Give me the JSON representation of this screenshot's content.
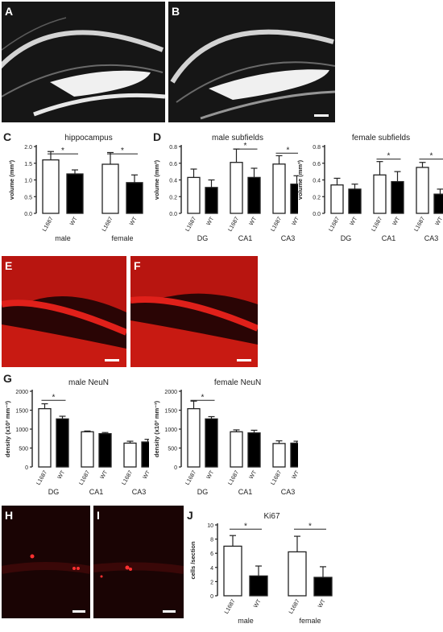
{
  "panel_labels": {
    "A": "A",
    "B": "B",
    "C": "C",
    "D": "D",
    "E": "E",
    "F": "F",
    "G": "G",
    "H": "H",
    "I": "I",
    "J": "J"
  },
  "colors": {
    "wt": "#000000",
    "l1687": "#ffffff",
    "axis": "#222222",
    "nissl_bg": "#161616",
    "nissl_fg": "#e8e8e8",
    "neun_bg": "#2a0505",
    "neun_fg": "#e0201a",
    "ki67_bg": "#1a0404",
    "ki67_spot": "#ff3030"
  },
  "chart_data": [
    {
      "id": "C",
      "type": "bar",
      "title": "hippocampus",
      "ylabel": "volume (mm³)",
      "ylim": [
        0,
        2.0
      ],
      "yticks": [
        "0.0",
        "0.5",
        "1.0",
        "1.5",
        "2.0"
      ],
      "ytick_values": [
        0,
        0.5,
        1.0,
        1.5,
        2.0
      ],
      "groups": [
        "male",
        "female"
      ],
      "bar_labels": [
        "L1687",
        "WT",
        "L1687",
        "WT"
      ],
      "values": [
        1.6,
        1.18,
        1.47,
        0.92
      ],
      "errors": [
        0.25,
        0.12,
        0.35,
        0.23
      ],
      "significance": [
        {
          "text": "*",
          "pair": [
            0,
            1
          ],
          "y": 1.78
        },
        {
          "text": "*",
          "pair": [
            2,
            3
          ],
          "y": 1.78
        }
      ]
    },
    {
      "id": "D1",
      "type": "bar",
      "title": "male subfields",
      "ylabel": "volume (mm³)",
      "ylim": [
        0,
        0.8
      ],
      "yticks": [
        "0.0",
        "0.2",
        "0.4",
        "0.6",
        "0.8"
      ],
      "ytick_values": [
        0,
        0.2,
        0.4,
        0.6,
        0.8
      ],
      "groups": [
        "DG",
        "CA1",
        "CA3"
      ],
      "bar_labels": [
        "L1687",
        "WT",
        "L1687",
        "WT",
        "L1687",
        "WT"
      ],
      "values": [
        0.43,
        0.31,
        0.61,
        0.43,
        0.59,
        0.35
      ],
      "errors": [
        0.1,
        0.09,
        0.16,
        0.11,
        0.1,
        0.1
      ],
      "significance": [
        {
          "text": "*",
          "pair": [
            2,
            3
          ],
          "y": 0.77
        },
        {
          "text": "*",
          "pair": [
            4,
            5
          ],
          "y": 0.72
        }
      ]
    },
    {
      "id": "D2",
      "type": "bar",
      "title": "female subfields",
      "ylabel": "volume (mm³)",
      "ylim": [
        0,
        0.8
      ],
      "yticks": [
        "0.0",
        "0.2",
        "0.4",
        "0.6",
        "0.8"
      ],
      "ytick_values": [
        0,
        0.2,
        0.4,
        0.6,
        0.8
      ],
      "groups": [
        "DG",
        "CA1",
        "CA3"
      ],
      "bar_labels": [
        "L1687",
        "WT",
        "L1687",
        "WT",
        "L1687",
        "WT"
      ],
      "values": [
        0.34,
        0.29,
        0.46,
        0.38,
        0.55,
        0.23
      ],
      "errors": [
        0.08,
        0.06,
        0.16,
        0.12,
        0.06,
        0.06
      ],
      "significance": [
        {
          "text": "*",
          "pair": [
            2,
            3
          ],
          "y": 0.65
        },
        {
          "text": "*",
          "pair": [
            4,
            5
          ],
          "y": 0.65
        }
      ]
    },
    {
      "id": "G1",
      "type": "bar",
      "title": "male NeuN",
      "ylabel": "density (x10³ mm⁻³)",
      "ylim": [
        0,
        2000
      ],
      "yticks": [
        "0",
        "500",
        "1000",
        "1500",
        "2000"
      ],
      "ytick_values": [
        0,
        500,
        1000,
        1500,
        2000
      ],
      "groups": [
        "DG",
        "CA1",
        "CA3"
      ],
      "bar_labels": [
        "L1687",
        "WT",
        "L1687",
        "WT",
        "L1687",
        "WT"
      ],
      "values": [
        1540,
        1270,
        930,
        880,
        630,
        660
      ],
      "errors": [
        130,
        70,
        20,
        30,
        50,
        70
      ],
      "significance": [
        {
          "text": "*",
          "pair": [
            0,
            1
          ],
          "y": 1760
        }
      ]
    },
    {
      "id": "G2",
      "type": "bar",
      "title": "female NeuN",
      "ylabel": "density (x10³ mm⁻³)",
      "ylim": [
        0,
        2000
      ],
      "yticks": [
        "0",
        "500",
        "1000",
        "1500",
        "2000"
      ],
      "ytick_values": [
        0,
        500,
        1000,
        1500,
        2000
      ],
      "groups": [
        "DG",
        "CA1",
        "CA3"
      ],
      "bar_labels": [
        "L1687",
        "WT",
        "L1687",
        "WT",
        "L1687",
        "WT"
      ],
      "values": [
        1540,
        1270,
        930,
        900,
        620,
        630
      ],
      "errors": [
        200,
        60,
        50,
        70,
        70,
        50
      ],
      "significance": [
        {
          "text": "*",
          "pair": [
            0,
            1
          ],
          "y": 1760
        }
      ]
    },
    {
      "id": "J",
      "type": "bar",
      "title": "Ki67",
      "ylabel": "cells /section",
      "ylim": [
        0,
        10
      ],
      "yticks": [
        "0",
        "2",
        "4",
        "6",
        "8",
        "10"
      ],
      "ytick_values": [
        0,
        2,
        4,
        6,
        8,
        10
      ],
      "groups": [
        "male",
        "female"
      ],
      "bar_labels": [
        "L1687",
        "WT",
        "L1687",
        "WT"
      ],
      "values": [
        7.0,
        2.8,
        6.2,
        2.6
      ],
      "errors": [
        1.5,
        1.4,
        2.2,
        1.5
      ],
      "significance": [
        {
          "text": "*",
          "pair": [
            0,
            1
          ],
          "y": 9.4
        },
        {
          "text": "*",
          "pair": [
            2,
            3
          ],
          "y": 9.4
        }
      ]
    }
  ]
}
